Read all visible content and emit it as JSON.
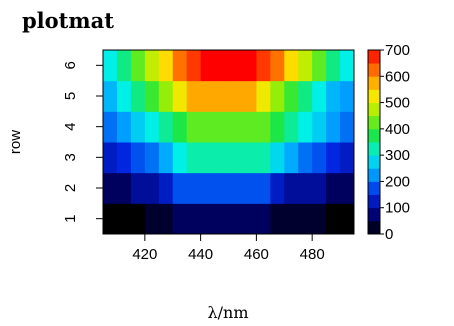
{
  "chart_data": {
    "type": "heatmap",
    "title": "plotmat",
    "xlabel": "λ/nm",
    "ylabel": "row",
    "x_ticks": [
      "420",
      "440",
      "460",
      "480"
    ],
    "y_ticks": [
      "1",
      "2",
      "3",
      "4",
      "5",
      "6"
    ],
    "xlim": [
      405,
      495
    ],
    "ylim": [
      0.5,
      6.5
    ],
    "x": [
      407.5,
      412.5,
      417.5,
      422.5,
      427.5,
      432.5,
      437.5,
      442.5,
      447.5,
      452.5,
      457.5,
      462.5,
      467.5,
      472.5,
      477.5,
      482.5,
      487.5,
      492.5
    ],
    "rows": [
      [
        0,
        0,
        0,
        30,
        30,
        60,
        60,
        60,
        60,
        60,
        60,
        60,
        30,
        30,
        30,
        30,
        0,
        0
      ],
      [
        60,
        60,
        100,
        100,
        130,
        180,
        180,
        180,
        180,
        180,
        180,
        180,
        130,
        100,
        100,
        100,
        60,
        60
      ],
      [
        130,
        150,
        180,
        200,
        240,
        300,
        330,
        330,
        330,
        330,
        330,
        330,
        280,
        240,
        200,
        180,
        150,
        130
      ],
      [
        200,
        230,
        270,
        300,
        340,
        380,
        420,
        420,
        420,
        420,
        420,
        420,
        380,
        340,
        300,
        270,
        230,
        200
      ],
      [
        250,
        300,
        350,
        400,
        450,
        520,
        580,
        580,
        580,
        580,
        580,
        520,
        450,
        400,
        350,
        300,
        250,
        230
      ],
      [
        300,
        350,
        420,
        480,
        540,
        620,
        660,
        700,
        700,
        700,
        700,
        660,
        620,
        540,
        480,
        420,
        350,
        300
      ]
    ],
    "zlim": [
      0,
      700
    ],
    "legend_ticks": [
      "0",
      "100",
      "200",
      "300",
      "400",
      "500",
      "600",
      "700"
    ],
    "legend_position": "right",
    "colormap": "rainbow (black-blue-cyan-green-yellow-red)"
  }
}
